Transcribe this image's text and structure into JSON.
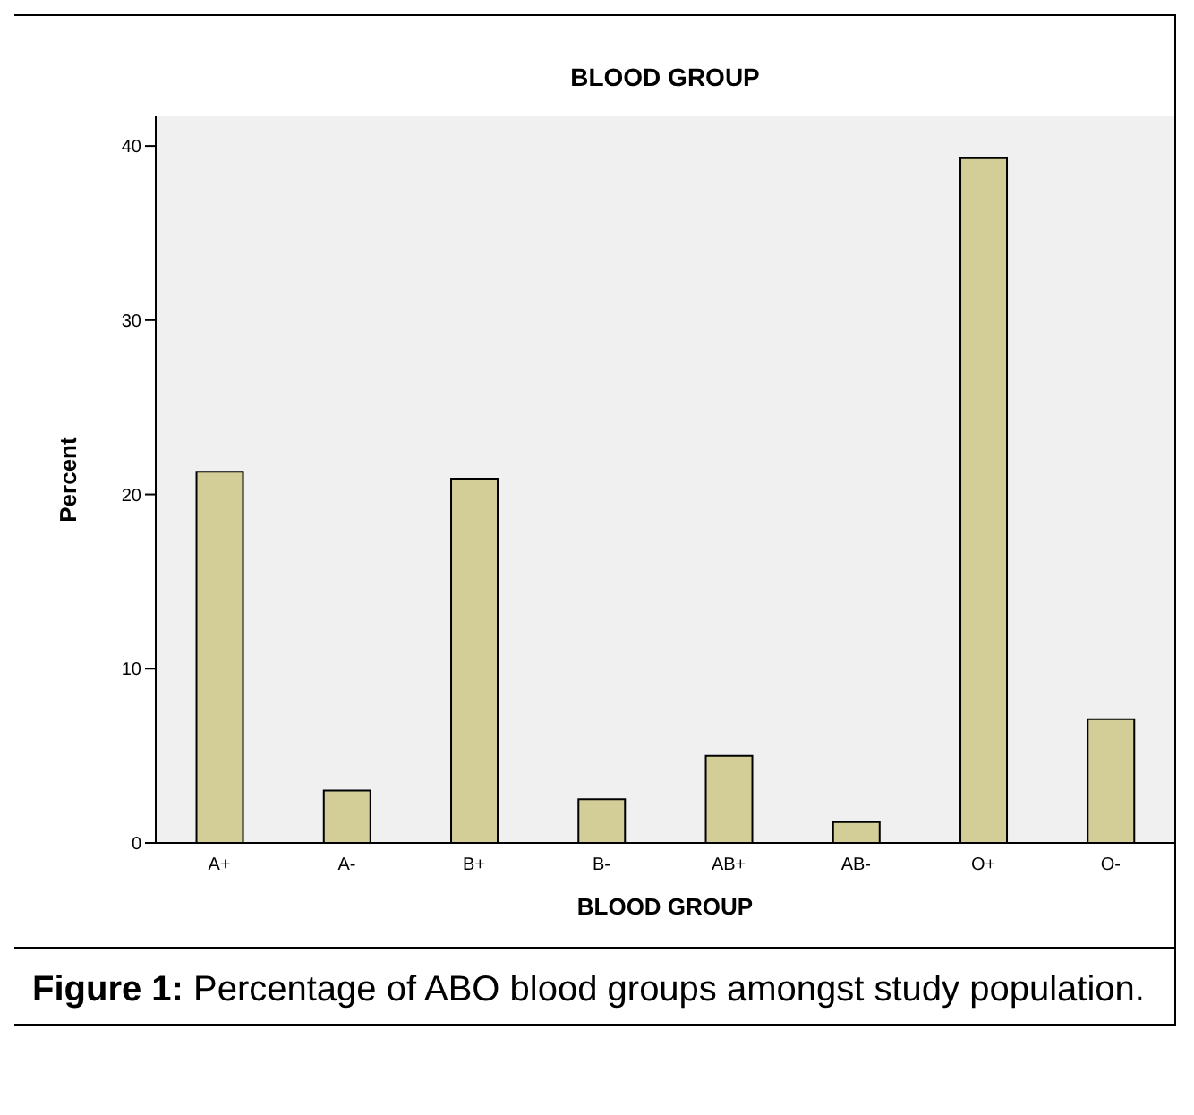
{
  "chart_data": {
    "type": "bar",
    "title": "BLOOD GROUP",
    "xlabel": "BLOOD GROUP",
    "ylabel": "Percent",
    "categories": [
      "A+",
      "A-",
      "B+",
      "B-",
      "AB+",
      "AB-",
      "O+",
      "O-"
    ],
    "values": [
      21.3,
      3.0,
      20.9,
      2.5,
      5.0,
      1.2,
      39.3,
      7.1
    ],
    "color": "#d3ce98",
    "ylim": [
      0,
      41.7
    ],
    "yticks": [
      0,
      10,
      20,
      30,
      40
    ],
    "annotations": [
      "Figure 1: Percentage of ABO blood groups amongst study population."
    ]
  }
}
